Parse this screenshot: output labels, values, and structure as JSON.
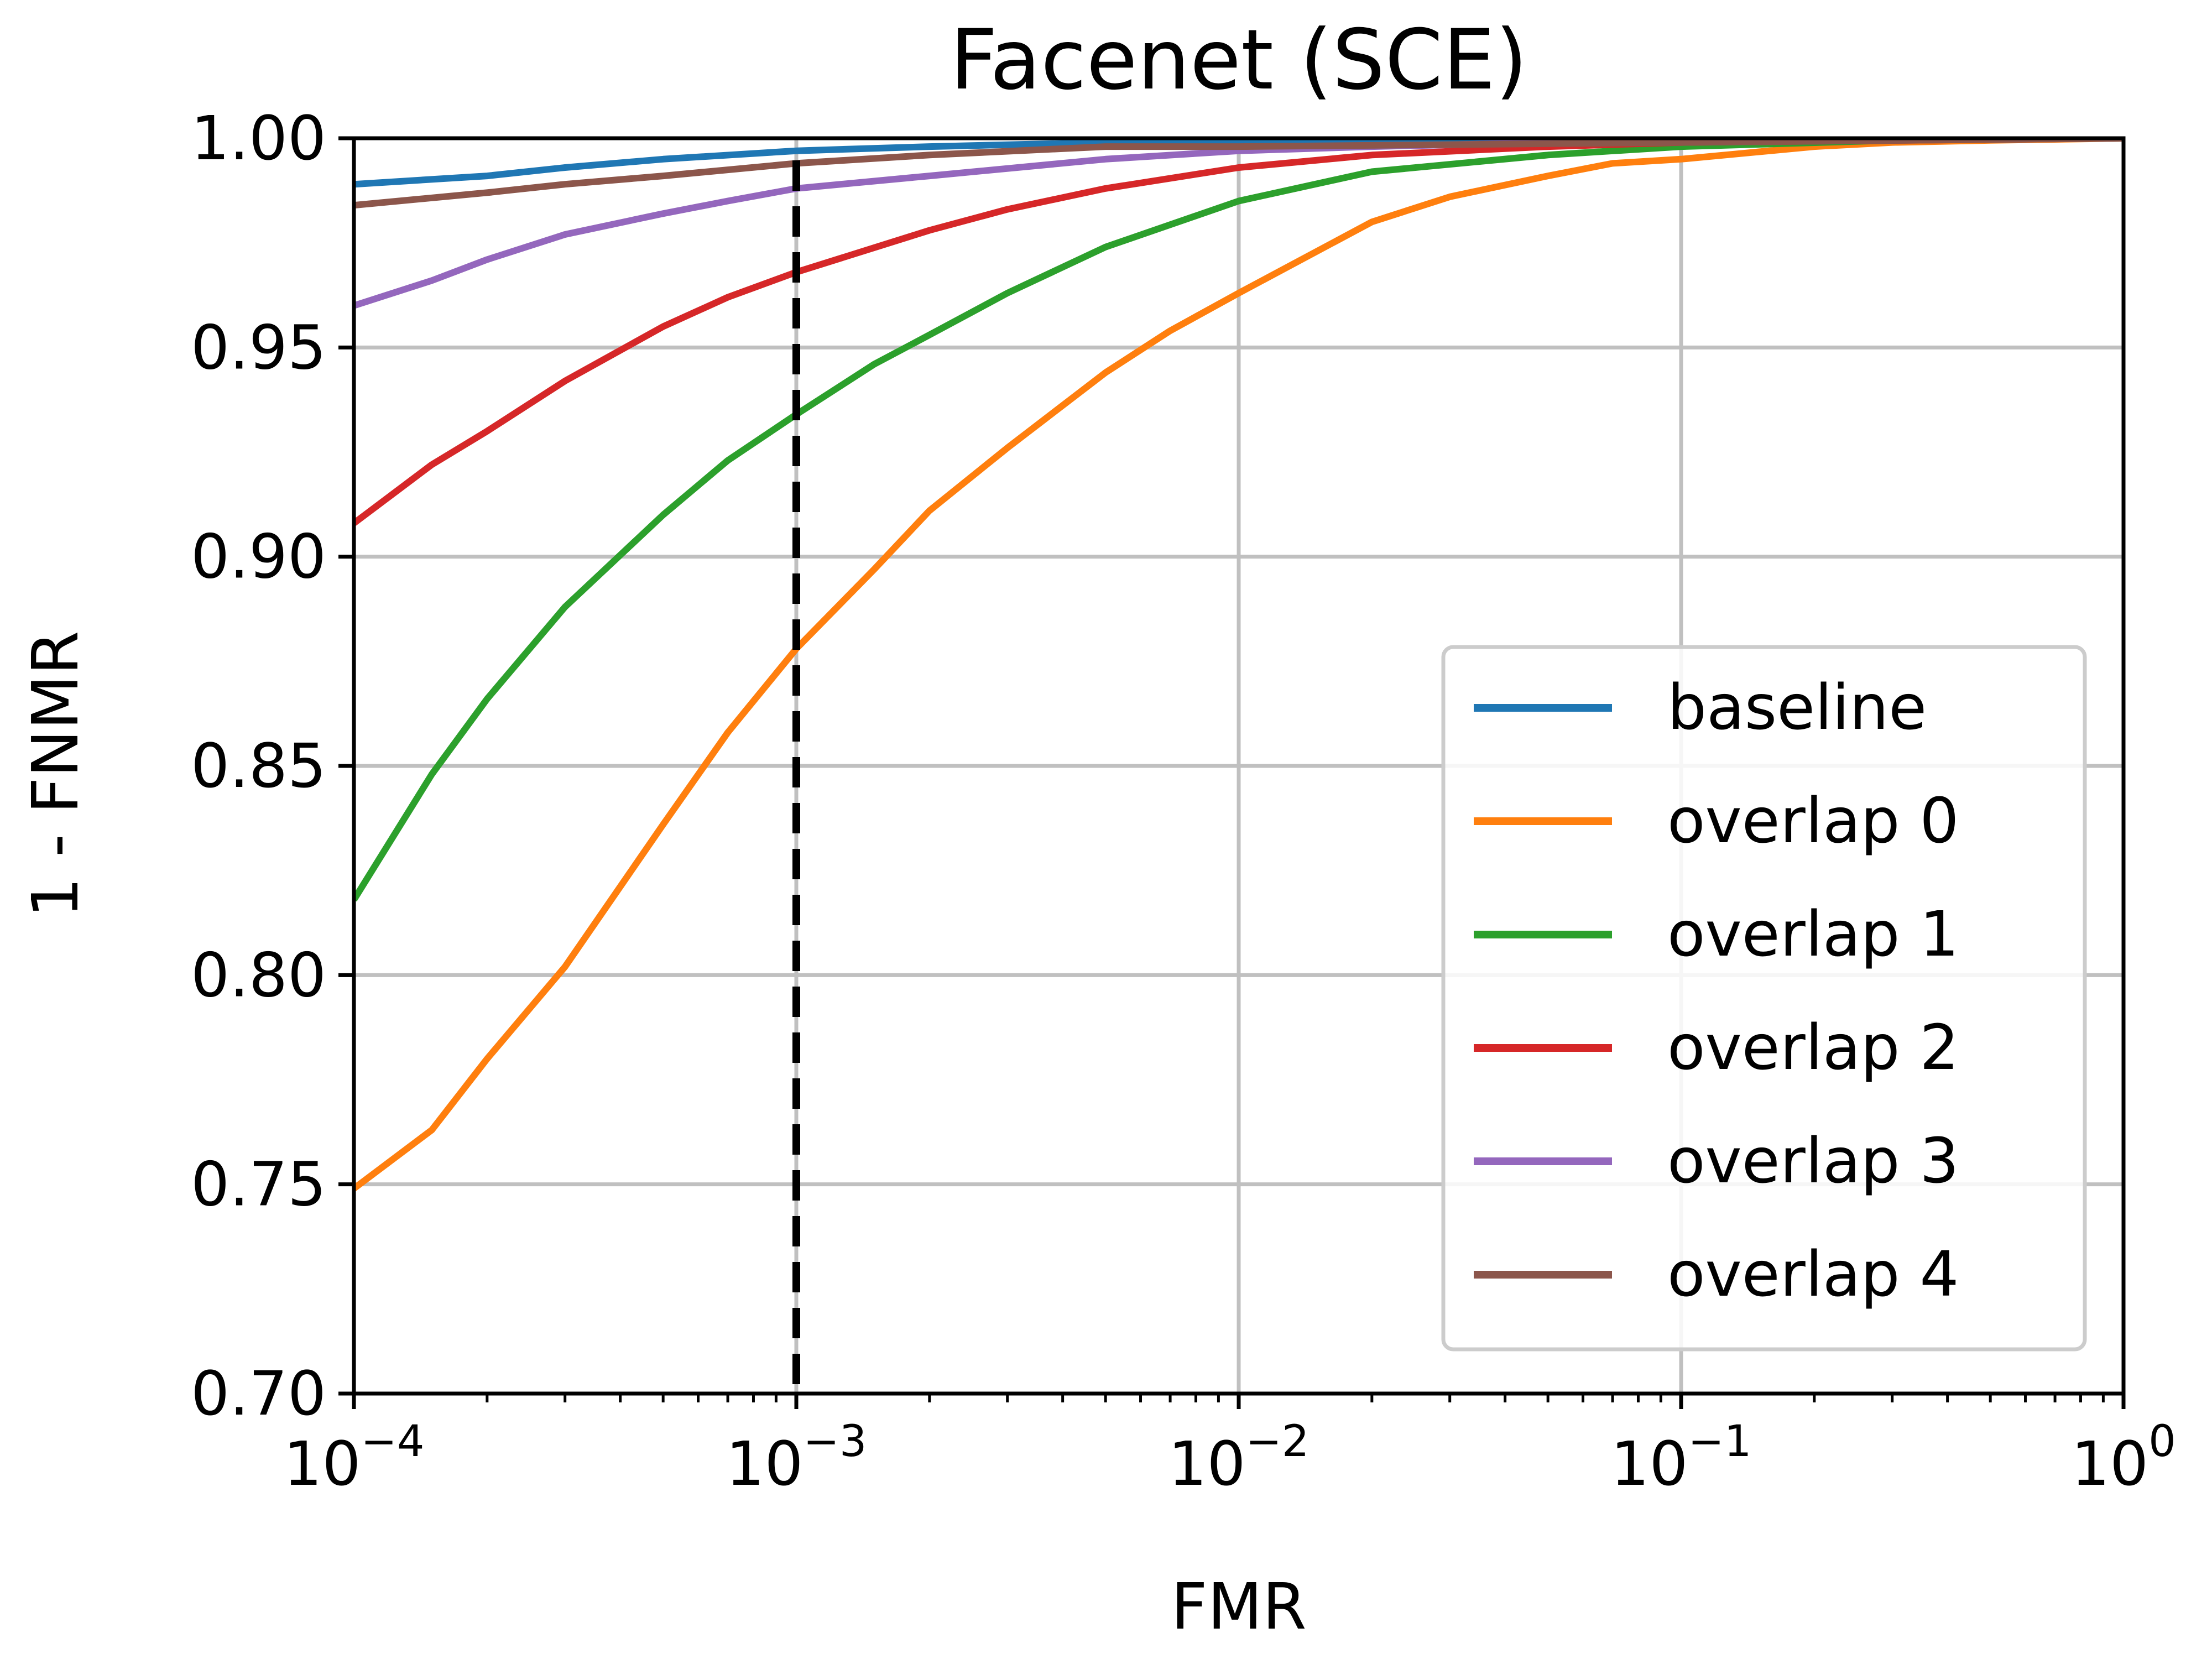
{
  "chart_data": {
    "type": "line",
    "title": "Facenet (SCE)",
    "xlabel": "FMR",
    "ylabel": "1 - FNMR",
    "x_scale": "log",
    "xlim": [
      0.0001,
      1
    ],
    "ylim": [
      0.7,
      1.0
    ],
    "grid": true,
    "legend_position": "lower-right",
    "x_ticks": [
      {
        "base": "10",
        "exp": "−4",
        "value": 0.0001
      },
      {
        "base": "10",
        "exp": "−3",
        "value": 0.001
      },
      {
        "base": "10",
        "exp": "−2",
        "value": 0.01
      },
      {
        "base": "10",
        "exp": "−1",
        "value": 0.1
      },
      {
        "base": "10",
        "exp": "0",
        "value": 1
      }
    ],
    "y_ticks": [
      "0.70",
      "0.75",
      "0.80",
      "0.85",
      "0.90",
      "0.95",
      "1.00"
    ],
    "reference_line": {
      "style": "dashed",
      "color": "#000000",
      "x": 0.001
    },
    "series": [
      {
        "name": "baseline",
        "color": "#1f77b4",
        "x": [
          0.0001,
          0.0002,
          0.0003,
          0.0005,
          0.001,
          0.002,
          0.005,
          0.01,
          0.1,
          1
        ],
        "y": [
          0.989,
          0.991,
          0.993,
          0.995,
          0.997,
          0.998,
          0.999,
          0.999,
          0.9995,
          1.0
        ]
      },
      {
        "name": "overlap 0",
        "color": "#ff7f0e",
        "x": [
          0.0001,
          0.00015,
          0.0002,
          0.0003,
          0.0005,
          0.0007,
          0.001,
          0.0015,
          0.002,
          0.003,
          0.005,
          0.007,
          0.01,
          0.02,
          0.03,
          0.05,
          0.07,
          0.1,
          0.2,
          0.3,
          0.5,
          1
        ],
        "y": [
          0.749,
          0.763,
          0.78,
          0.802,
          0.836,
          0.858,
          0.878,
          0.897,
          0.911,
          0.926,
          0.944,
          0.954,
          0.963,
          0.98,
          0.986,
          0.991,
          0.994,
          0.995,
          0.998,
          0.999,
          0.9995,
          1.0
        ]
      },
      {
        "name": "overlap 1",
        "color": "#2ca02c",
        "x": [
          0.0001,
          0.00015,
          0.0002,
          0.0003,
          0.0005,
          0.0007,
          0.001,
          0.0015,
          0.002,
          0.003,
          0.005,
          0.01,
          0.02,
          0.05,
          0.1,
          0.3,
          1
        ],
        "y": [
          0.818,
          0.848,
          0.866,
          0.888,
          0.91,
          0.923,
          0.934,
          0.946,
          0.953,
          0.963,
          0.974,
          0.985,
          0.992,
          0.996,
          0.998,
          0.9995,
          1.0
        ]
      },
      {
        "name": "overlap 2",
        "color": "#d62728",
        "x": [
          0.0001,
          0.00015,
          0.0002,
          0.0003,
          0.0005,
          0.0007,
          0.001,
          0.002,
          0.003,
          0.005,
          0.01,
          0.02,
          0.05,
          0.1,
          1
        ],
        "y": [
          0.908,
          0.922,
          0.93,
          0.942,
          0.955,
          0.962,
          0.968,
          0.978,
          0.983,
          0.988,
          0.993,
          0.996,
          0.998,
          0.999,
          1.0
        ]
      },
      {
        "name": "overlap 3",
        "color": "#9467bd",
        "x": [
          0.0001,
          0.00015,
          0.0002,
          0.0003,
          0.0005,
          0.0007,
          0.001,
          0.002,
          0.005,
          0.01,
          0.02,
          0.05,
          0.1,
          1
        ],
        "y": [
          0.96,
          0.966,
          0.971,
          0.977,
          0.982,
          0.985,
          0.988,
          0.991,
          0.995,
          0.997,
          0.998,
          0.999,
          0.9995,
          1.0
        ]
      },
      {
        "name": "overlap 4",
        "color": "#8c564b",
        "x": [
          0.0001,
          0.0002,
          0.0003,
          0.0005,
          0.001,
          0.002,
          0.005,
          0.01,
          0.1,
          1
        ],
        "y": [
          0.984,
          0.987,
          0.989,
          0.991,
          0.994,
          0.996,
          0.998,
          0.998,
          0.999,
          1.0
        ]
      }
    ]
  }
}
